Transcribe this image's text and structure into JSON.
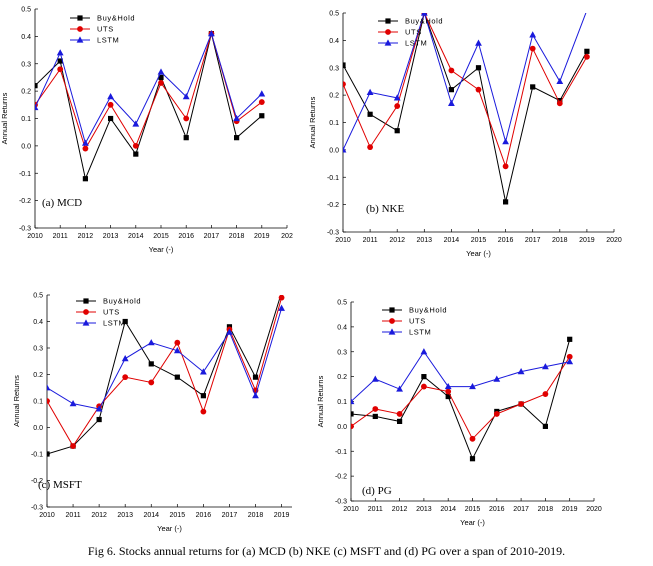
{
  "figure": {
    "caption": "Fig 6. Stocks annual  returns for (a) MCD (b) NKE (c) MSFT and (d) PG over a span of 2010-2019."
  },
  "series_styles": {
    "Buy&Hold": {
      "color": "#000000",
      "marker": "square"
    },
    "UTS": {
      "color": "#e00000",
      "marker": "circle"
    },
    "LSTM": {
      "color": "#1a1adc",
      "marker": "triangle"
    }
  },
  "chart_data": [
    {
      "type": "line",
      "panel_label": "(a) MCD",
      "xlabel": "Year (-)",
      "ylabel": "Annual Returns",
      "x": [
        2010,
        2011,
        2012,
        2013,
        2014,
        2015,
        2016,
        2017,
        2018,
        2019
      ],
      "xlim": [
        2010,
        2020
      ],
      "xticks": [
        "2010",
        "2011",
        "2012",
        "2013",
        "2014",
        "2015",
        "2016",
        "2017",
        "2018",
        "2019",
        "202"
      ],
      "ylim": [
        -0.3,
        0.5
      ],
      "yticks": [
        "-0.3",
        "-0.2",
        "-0.1",
        "0.0",
        "0.1",
        "0.2",
        "0.3",
        "0.4",
        "0.5"
      ],
      "legend": "top-left",
      "series": [
        {
          "name": "Buy&Hold",
          "values": [
            0.22,
            0.31,
            -0.12,
            0.1,
            -0.03,
            0.25,
            0.03,
            0.41,
            0.03,
            0.11
          ]
        },
        {
          "name": "UTS",
          "values": [
            0.15,
            0.28,
            -0.01,
            0.15,
            0.0,
            0.23,
            0.1,
            0.41,
            0.09,
            0.16
          ]
        },
        {
          "name": "LSTM",
          "values": [
            0.14,
            0.34,
            0.01,
            0.18,
            0.08,
            0.27,
            0.18,
            0.41,
            0.1,
            0.19
          ]
        }
      ]
    },
    {
      "type": "line",
      "panel_label": "(b) NKE",
      "xlabel": "Year (-)",
      "ylabel": "Annual Returns",
      "x": [
        2010,
        2011,
        2012,
        2013,
        2014,
        2015,
        2016,
        2017,
        2018,
        2019
      ],
      "xlim": [
        2010,
        2020
      ],
      "xticks": [
        "2010",
        "2011",
        "2012",
        "2013",
        "2014",
        "2015",
        "2016",
        "2017",
        "2018",
        "2019",
        "2020"
      ],
      "ylim": [
        -0.3,
        0.5
      ],
      "yticks": [
        "-0.3",
        "-0.2",
        "-0.1",
        "0.0",
        "0.1",
        "0.2",
        "0.3",
        "0.4",
        "0.5"
      ],
      "legend": "top-left",
      "series": [
        {
          "name": "Buy&Hold",
          "values": [
            0.31,
            0.13,
            0.07,
            0.5,
            0.22,
            0.3,
            -0.19,
            0.23,
            0.18,
            0.36
          ]
        },
        {
          "name": "UTS",
          "values": [
            0.24,
            0.01,
            0.16,
            0.5,
            0.29,
            0.22,
            -0.06,
            0.37,
            0.17,
            0.34
          ]
        },
        {
          "name": "LSTM",
          "values": [
            0.0,
            0.21,
            0.19,
            0.5,
            0.17,
            0.39,
            0.03,
            0.42,
            0.25,
            0.51
          ]
        }
      ]
    },
    {
      "type": "line",
      "panel_label": "(c) MSFT",
      "xlabel": "Year (-)",
      "ylabel": "Annual Returns",
      "x": [
        2010,
        2011,
        2012,
        2013,
        2014,
        2015,
        2016,
        2017,
        2018,
        2019
      ],
      "xlim": [
        2010,
        2019.4
      ],
      "xticks": [
        "2010",
        "2011",
        "2012",
        "2013",
        "2014",
        "2015",
        "2016",
        "2017",
        "2018",
        "2019"
      ],
      "ylim": [
        -0.3,
        0.5
      ],
      "yticks": [
        "-0.3",
        "-0.2",
        "-0.1",
        "0.0",
        "0.1",
        "0.2",
        "0.3",
        "0.4",
        "0.5"
      ],
      "legend": "top-left",
      "series": [
        {
          "name": "Buy&Hold",
          "values": [
            -0.1,
            -0.07,
            0.03,
            0.4,
            0.24,
            0.19,
            0.12,
            0.38,
            0.19,
            0.51
          ]
        },
        {
          "name": "UTS",
          "values": [
            0.1,
            -0.07,
            0.08,
            0.19,
            0.17,
            0.32,
            0.06,
            0.37,
            0.14,
            0.49
          ]
        },
        {
          "name": "LSTM",
          "values": [
            0.15,
            0.09,
            0.07,
            0.26,
            0.32,
            0.29,
            0.21,
            0.36,
            0.12,
            0.45
          ]
        }
      ]
    },
    {
      "type": "line",
      "panel_label": "(d) PG",
      "xlabel": "Year (-)",
      "ylabel": "Annual Returns",
      "x": [
        2010,
        2011,
        2012,
        2013,
        2014,
        2015,
        2016,
        2017,
        2018,
        2019
      ],
      "xlim": [
        2010,
        2020
      ],
      "xticks": [
        "2010",
        "2011",
        "2012",
        "2013",
        "2014",
        "2015",
        "2016",
        "2017",
        "2018",
        "2019",
        "2020"
      ],
      "ylim": [
        -0.3,
        0.5
      ],
      "yticks": [
        "-0.3",
        "-0.2",
        "-0.1",
        "0.0",
        "0.1",
        "0.2",
        "0.3",
        "0.4",
        "0.5"
      ],
      "legend": "top-left",
      "series": [
        {
          "name": "Buy&Hold",
          "values": [
            0.05,
            0.04,
            0.02,
            0.2,
            0.12,
            -0.13,
            0.06,
            0.09,
            0.0,
            0.35
          ]
        },
        {
          "name": "UTS",
          "values": [
            0.0,
            0.07,
            0.05,
            0.16,
            0.14,
            -0.05,
            0.05,
            0.09,
            0.13,
            0.28
          ]
        },
        {
          "name": "LSTM",
          "values": [
            0.1,
            0.19,
            0.15,
            0.3,
            0.16,
            0.16,
            0.19,
            0.22,
            0.24,
            0.26
          ]
        }
      ]
    }
  ]
}
